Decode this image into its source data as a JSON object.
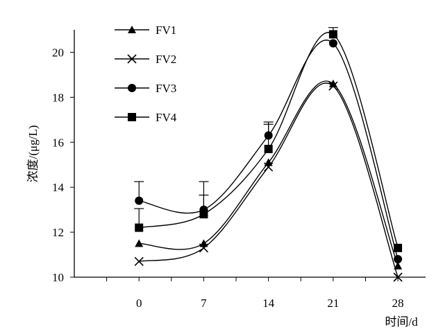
{
  "chart_data": {
    "type": "line",
    "xlabel": "时间/d",
    "ylabel": "浓度/(μg/L)",
    "x": [
      0,
      7,
      14,
      21,
      28
    ],
    "xticks": [
      0,
      7,
      14,
      21,
      28
    ],
    "yticks": [
      10,
      12,
      14,
      16,
      18,
      20
    ],
    "xlim": [
      -7,
      31
    ],
    "ylim": [
      10,
      21
    ],
    "legend": "top-left",
    "grid": false,
    "series": [
      {
        "name": "FV1",
        "marker": "triangle",
        "values": [
          11.5,
          11.5,
          15.1,
          18.6,
          10.5
        ],
        "errors": [
          0.0,
          0.0,
          0.0,
          0.0,
          0.0
        ]
      },
      {
        "name": "FV2",
        "marker": "x",
        "values": [
          10.7,
          11.3,
          14.9,
          18.5,
          10.0
        ],
        "errors": [
          0.0,
          0.0,
          0.0,
          0.0,
          0.0
        ]
      },
      {
        "name": "FV3",
        "marker": "circle",
        "values": [
          13.4,
          13.0,
          16.3,
          20.4,
          10.8
        ],
        "errors": [
          0.85,
          1.25,
          0.6,
          0.0,
          0.0
        ]
      },
      {
        "name": "FV4",
        "marker": "square",
        "values": [
          12.2,
          12.8,
          15.7,
          20.8,
          11.3
        ],
        "errors": [
          0.85,
          0.85,
          1.1,
          0.3,
          0.0
        ]
      }
    ]
  }
}
